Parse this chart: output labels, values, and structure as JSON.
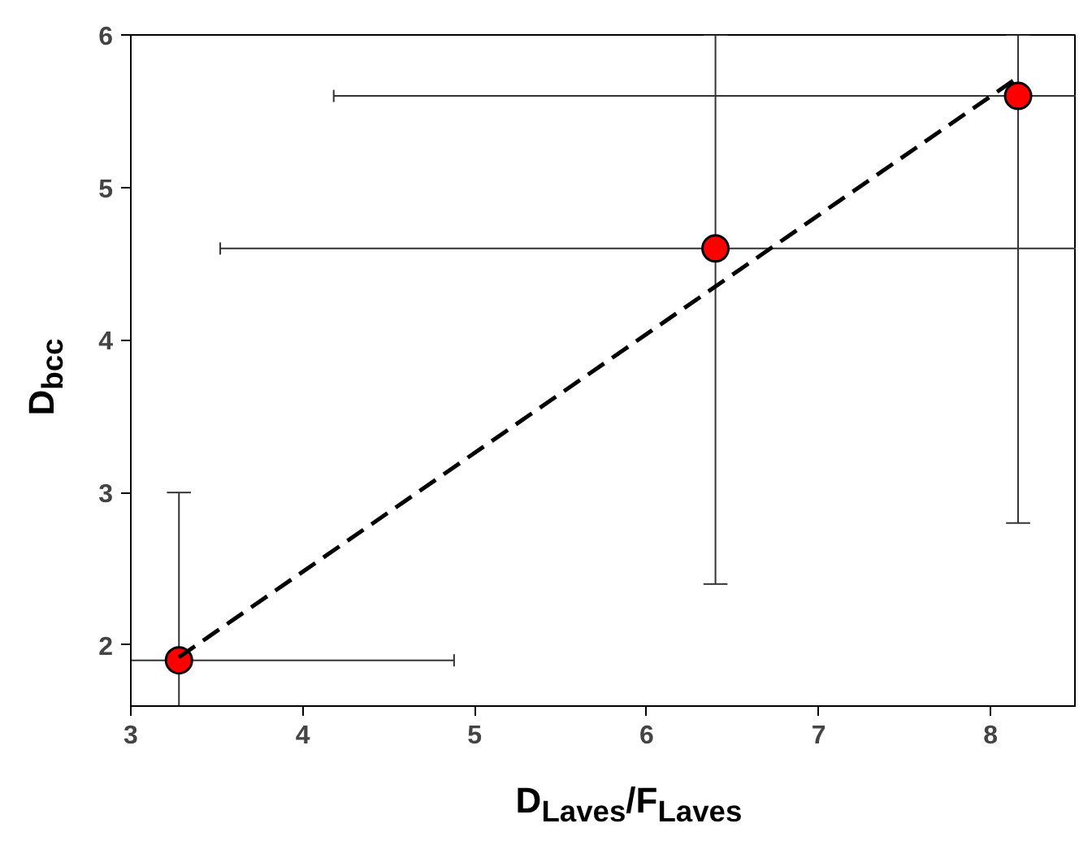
{
  "chart_data": {
    "type": "scatter",
    "xlabel": "D$_{Laves}$/F$_{Laves}$",
    "ylabel": "D$_{bcc}$",
    "xlim": [
      3,
      8.5
    ],
    "ylim": [
      1.6,
      6
    ],
    "xticks": [
      3,
      4,
      5,
      6,
      7,
      8
    ],
    "yticks": [
      2,
      3,
      4,
      5,
      6
    ],
    "grid": false,
    "marker": "circle",
    "series": [
      {
        "type": "scatter",
        "color": "#ff0000",
        "x": [
          3.28,
          6.4,
          8.16
        ],
        "values": [
          1.9,
          4.6,
          5.6
        ],
        "errors": [
          [
            1.6,
            3.0
          ],
          [
            2.4,
            6.0
          ],
          [
            2.8,
            6.0
          ]
        ],
        "xerrors": [
          [
            3.0,
            4.88
          ],
          [
            3.52,
            8.5
          ],
          [
            4.18,
            8.5
          ]
        ]
      },
      {
        "type": "line",
        "color": "#000000",
        "line_style": "dashed",
        "marker": "none",
        "x": [
          3.28,
          8.17
        ],
        "values": [
          1.92,
          5.73
        ]
      }
    ]
  }
}
